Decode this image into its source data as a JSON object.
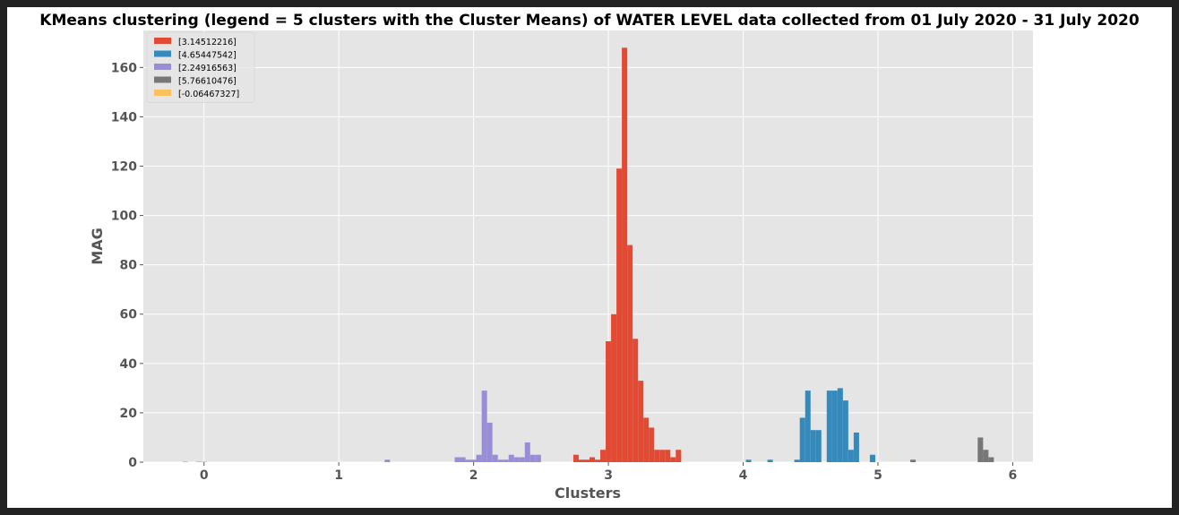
{
  "chart_data": {
    "type": "bar",
    "title": "KMeans clustering (legend = 5 clusters with the Cluster Means) of WATER LEVEL data collected from 01 July 2020 - 31 July 2020",
    "xlabel": "Clusters",
    "ylabel": "MAG",
    "xlim": [
      -0.45,
      6.15
    ],
    "ylim": [
      0,
      175
    ],
    "xticks": [
      "0",
      "1",
      "2",
      "3",
      "4",
      "5",
      "6"
    ],
    "yticks": [
      "0",
      "20",
      "40",
      "60",
      "80",
      "100",
      "120",
      "140",
      "160"
    ],
    "xtick_values": [
      0,
      1,
      2,
      3,
      4,
      5,
      6
    ],
    "ytick_values": [
      0,
      20,
      40,
      60,
      80,
      100,
      120,
      140,
      160
    ],
    "grid": true,
    "legend_position": "top-left",
    "bin_width": 0.04,
    "series": [
      {
        "name": "[3.14512216]",
        "color": "#e24a33",
        "bins": [
          [
            2.74,
            3
          ],
          [
            2.78,
            1
          ],
          [
            2.82,
            1
          ],
          [
            2.86,
            2
          ],
          [
            2.9,
            1
          ],
          [
            2.94,
            5
          ],
          [
            2.98,
            49
          ],
          [
            3.02,
            60
          ],
          [
            3.06,
            119
          ],
          [
            3.1,
            168
          ],
          [
            3.14,
            88
          ],
          [
            3.18,
            50
          ],
          [
            3.22,
            33
          ],
          [
            3.26,
            18
          ],
          [
            3.3,
            14
          ],
          [
            3.34,
            5
          ],
          [
            3.38,
            5
          ],
          [
            3.42,
            5
          ],
          [
            3.46,
            2
          ],
          [
            3.5,
            5
          ]
        ]
      },
      {
        "name": "[4.65447542]",
        "color": "#348abd",
        "bins": [
          [
            4.02,
            1
          ],
          [
            4.18,
            1
          ],
          [
            4.38,
            1
          ],
          [
            4.42,
            18
          ],
          [
            4.46,
            29
          ],
          [
            4.5,
            13
          ],
          [
            4.54,
            13
          ],
          [
            4.62,
            29
          ],
          [
            4.66,
            29
          ],
          [
            4.7,
            30
          ],
          [
            4.74,
            25
          ],
          [
            4.78,
            5
          ],
          [
            4.82,
            12
          ],
          [
            4.94,
            3
          ]
        ]
      },
      {
        "name": "[2.24916563]",
        "color": "#988ed5",
        "bins": [
          [
            1.34,
            1
          ],
          [
            1.86,
            2
          ],
          [
            1.9,
            2
          ],
          [
            1.94,
            1
          ],
          [
            1.98,
            1
          ],
          [
            2.02,
            3
          ],
          [
            2.06,
            29
          ],
          [
            2.1,
            16
          ],
          [
            2.14,
            3
          ],
          [
            2.18,
            1
          ],
          [
            2.22,
            1
          ],
          [
            2.26,
            3
          ],
          [
            2.3,
            2
          ],
          [
            2.34,
            2
          ],
          [
            2.38,
            8
          ],
          [
            2.42,
            3
          ],
          [
            2.46,
            3
          ]
        ]
      },
      {
        "name": "[5.76610476]",
        "color": "#777777",
        "bins": [
          [
            5.24,
            1
          ],
          [
            5.74,
            10
          ],
          [
            5.78,
            5
          ],
          [
            5.82,
            2
          ]
        ]
      },
      {
        "name": "[-0.06467327]",
        "color": "#fbc15e",
        "bins": [
          [
            -0.16,
            0.4
          ],
          [
            -0.06,
            0.4
          ],
          [
            -0.02,
            0.3
          ]
        ]
      }
    ]
  }
}
